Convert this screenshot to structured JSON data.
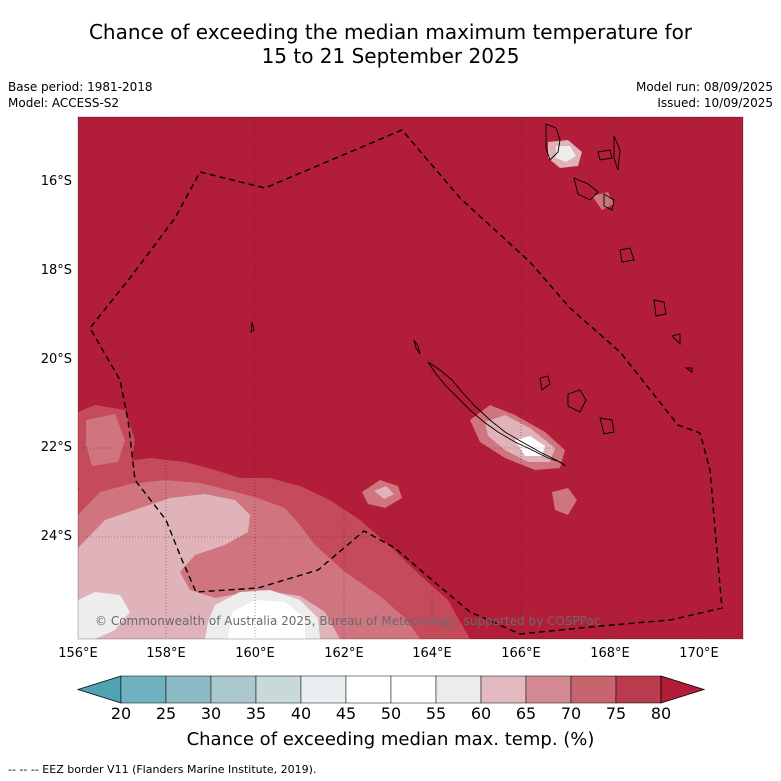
{
  "title": {
    "line1": "Chance of exceeding the median maximum temperature for",
    "line2": "15 to 21 September 2025"
  },
  "meta": {
    "base_period": "Base period: 1981-2018",
    "model": "Model: ACCESS-S2",
    "model_run": "Model run: 08/09/2025",
    "issued": "Issued: 10/09/2025"
  },
  "axes": {
    "lat_labels": [
      "16°S",
      "18°S",
      "20°S",
      "22°S",
      "24°S"
    ],
    "lon_labels": [
      "156°E",
      "158°E",
      "160°E",
      "162°E",
      "164°E",
      "166°E",
      "168°E",
      "170°E"
    ]
  },
  "copyright": "© Commonwealth of Australia 2025, Bureau of Meteorology, supported by COSPPac",
  "colorbar": {
    "ticks": [
      "20",
      "25",
      "30",
      "35",
      "40",
      "45",
      "50",
      "55",
      "60",
      "65",
      "70",
      "75",
      "80"
    ],
    "label": "Chance of exceeding median max. temp. (%)",
    "colors": [
      "#4fa3b2",
      "#6fb1bf",
      "#8dbac5",
      "#aac8cd",
      "#c8d9dc",
      "#e9eff1",
      "#ffffff",
      "#ffffff",
      "#ececec",
      "#e2b9bf",
      "#d38a93",
      "#c7646e",
      "#b83c4d",
      "#b21d39"
    ]
  },
  "legend_note": "--  --  -- EEZ border V11 (Flanders Marine Institute, 2019).",
  "map_colors": {
    "dominant": "#b21d39",
    "level_75": "#c54a5a",
    "level_70": "#d0747f",
    "level_65": "#dfb3b9",
    "level_60": "#ededed",
    "level_50": "#ffffff"
  }
}
